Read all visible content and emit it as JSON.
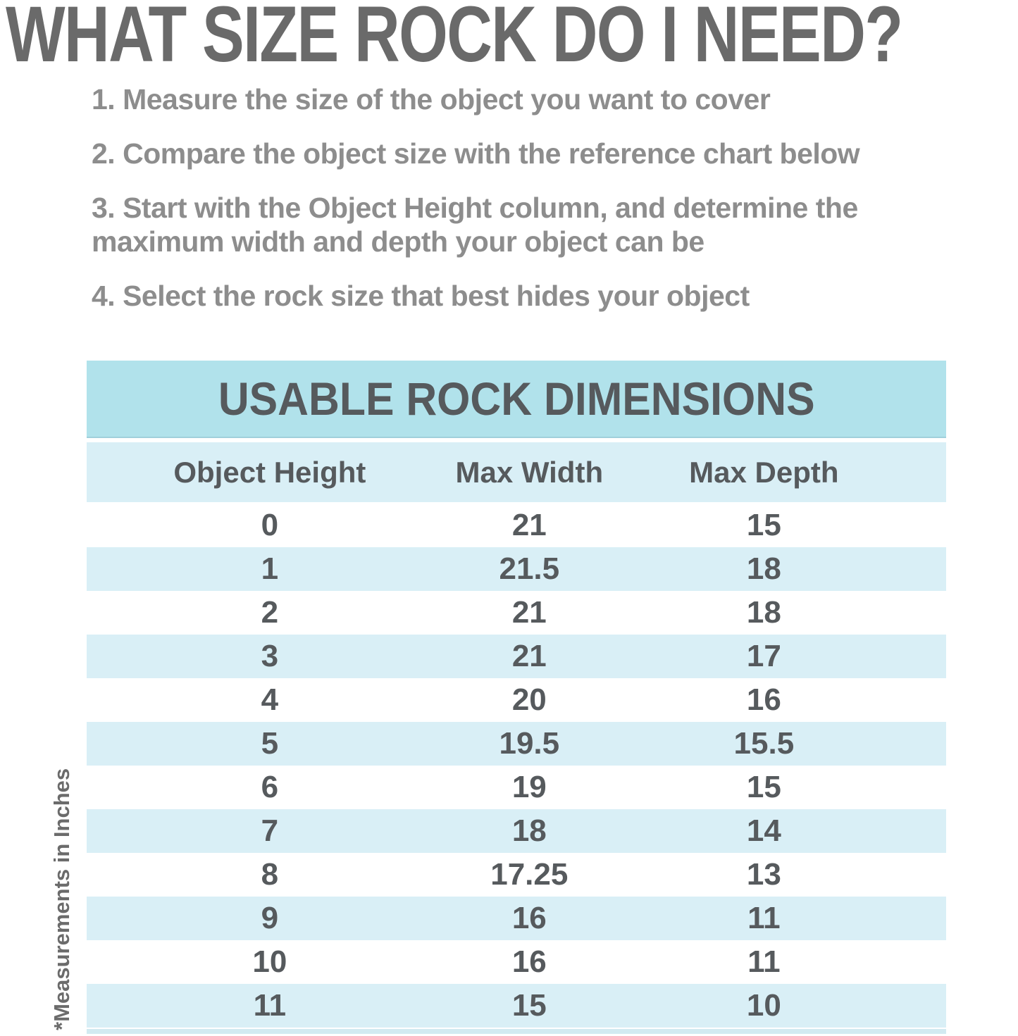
{
  "page": {
    "title": "WHAT SIZE ROCK DO I NEED?",
    "instructions": [
      "1. Measure the size of the object you want to cover",
      "2. Compare the object size with the reference chart below",
      "3. Start with the Object Height column, and determine the maximum width and depth your object can be",
      "4. Select the rock size that best hides your object"
    ],
    "footnote": "*Measurements in Inches"
  },
  "chart_data": {
    "type": "table",
    "title": "USABLE ROCK DIMENSIONS",
    "columns": [
      "Object Height",
      "Max Width",
      "Max Depth"
    ],
    "rows": [
      [
        0,
        21,
        15
      ],
      [
        1,
        21.5,
        18
      ],
      [
        2,
        21,
        18
      ],
      [
        3,
        21,
        17
      ],
      [
        4,
        20,
        16
      ],
      [
        5,
        19.5,
        15.5
      ],
      [
        6,
        19,
        15
      ],
      [
        7,
        18,
        14
      ],
      [
        8,
        17.25,
        13
      ],
      [
        9,
        16,
        11
      ],
      [
        10,
        16,
        11
      ],
      [
        11,
        15,
        10
      ]
    ],
    "units": "inches",
    "layout": {
      "row_striping": "alternating white and light blue, first data row white",
      "column_centers_pct": [
        21.3,
        51.5,
        78.8
      ]
    }
  },
  "colors": {
    "title_text": "#6a6a6a",
    "instruction_text": "#8d8d8d",
    "table_band": "#b1e2eb",
    "table_row_alt": "#d9eff6",
    "table_text": "#565a5d",
    "bottom_strip": "#d2eaf1",
    "footnote_text": "#6b6b6b"
  }
}
